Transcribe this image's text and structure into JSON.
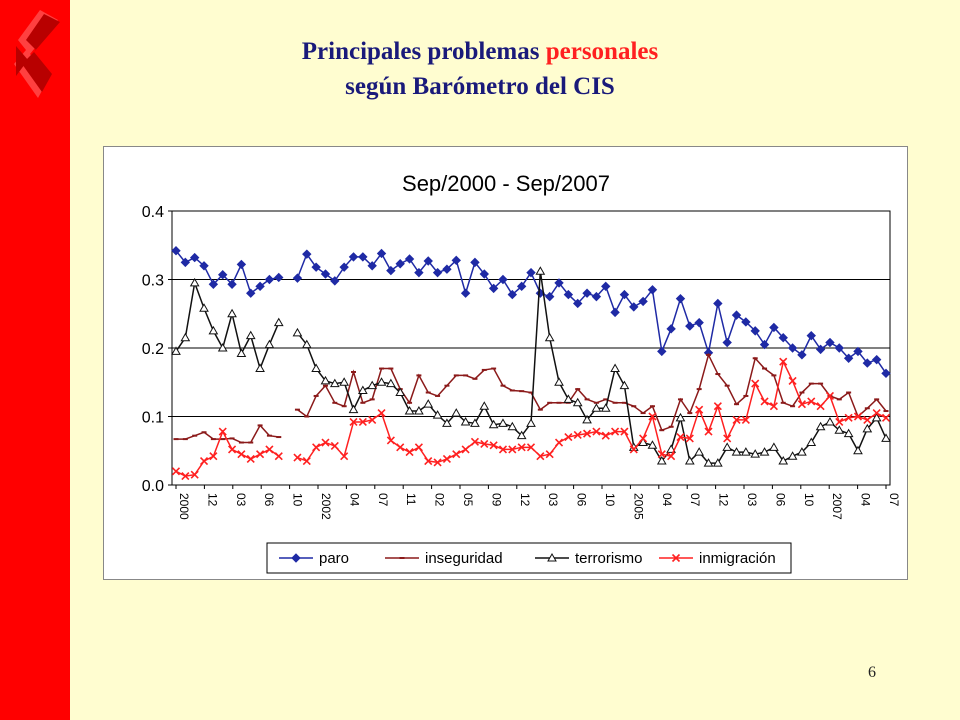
{
  "slide": {
    "title_line1_prefix": "Principales problemas ",
    "title_line1_accent": "personales",
    "title_line2": "según Barómetro del CIS",
    "page_number": "6",
    "colors": {
      "sidebar": "#ff0000",
      "background": "#fffdd0",
      "title": "#1a1a7a",
      "accent": "#ff2020"
    },
    "logo_icon": "cis-logo-icon"
  },
  "chart_data": {
    "type": "line",
    "title": "Sep/2000 - Sep/2007",
    "ylim": [
      0,
      0.4
    ],
    "y_ticks": [
      "0.0",
      "0.1",
      "0.2",
      "0.3",
      "0.4"
    ],
    "grid": true,
    "legend_position": "bottom",
    "x_tick_labels": [
      "2000",
      "12",
      "03",
      "06",
      "10",
      "2002",
      "04",
      "07",
      "11",
      "02",
      "05",
      "09",
      "12",
      "03",
      "06",
      "10",
      "2005",
      "04",
      "07",
      "12",
      "03",
      "06",
      "10",
      "2007",
      "04",
      "07"
    ],
    "series": [
      {
        "name": "paro",
        "color": "#1f2aa5",
        "marker": "diamond",
        "values": [
          0.342,
          0.325,
          0.332,
          0.32,
          0.293,
          0.307,
          0.293,
          0.322,
          0.28,
          0.29,
          0.3,
          0.303,
          null,
          0.302,
          0.337,
          0.318,
          0.308,
          0.298,
          0.318,
          0.333,
          0.333,
          0.32,
          0.338,
          0.313,
          0.323,
          0.33,
          0.31,
          0.327,
          0.31,
          0.315,
          0.328,
          0.28,
          0.325,
          0.308,
          0.287,
          0.3,
          0.278,
          0.29,
          0.31,
          0.28,
          0.275,
          0.295,
          0.278,
          0.265,
          0.28,
          0.275,
          0.29,
          0.252,
          0.278,
          0.26,
          0.268,
          0.285,
          0.195,
          0.228,
          0.272,
          0.232,
          0.237,
          0.193,
          0.265,
          0.208,
          0.248,
          0.238,
          0.225,
          0.205,
          0.23,
          0.215,
          0.2,
          0.19,
          0.218,
          0.198,
          0.208,
          0.2,
          0.185,
          0.195,
          0.178,
          0.183,
          0.163
        ]
      },
      {
        "name": "inseguridad",
        "color": "#8b1a1a",
        "marker": "dash",
        "values": [
          0.067,
          0.067,
          0.072,
          0.077,
          0.067,
          0.067,
          0.068,
          0.062,
          0.062,
          0.087,
          0.072,
          0.07,
          null,
          0.11,
          0.1,
          0.13,
          0.145,
          0.12,
          0.115,
          0.165,
          0.12,
          0.125,
          0.17,
          0.17,
          0.14,
          0.12,
          0.16,
          0.135,
          0.13,
          0.145,
          0.16,
          0.16,
          0.155,
          0.168,
          0.17,
          0.145,
          0.138,
          0.137,
          0.135,
          0.11,
          0.12,
          0.12,
          0.12,
          0.14,
          0.125,
          0.12,
          0.125,
          0.12,
          0.12,
          0.115,
          0.105,
          0.115,
          0.08,
          0.085,
          0.125,
          0.105,
          0.14,
          0.19,
          0.162,
          0.145,
          0.118,
          0.13,
          0.185,
          0.17,
          0.16,
          0.12,
          0.115,
          0.135,
          0.148,
          0.148,
          0.13,
          0.125,
          0.135,
          0.1,
          0.112,
          0.125,
          0.108
        ]
      },
      {
        "name": "terrorismo",
        "color": "#111111",
        "marker": "triangle",
        "values": [
          0.195,
          0.215,
          0.295,
          0.258,
          0.225,
          0.2,
          0.25,
          0.192,
          0.218,
          0.17,
          0.205,
          0.237,
          null,
          0.222,
          0.205,
          0.17,
          0.152,
          0.148,
          0.15,
          0.11,
          0.138,
          0.145,
          0.15,
          0.148,
          0.135,
          0.108,
          0.108,
          0.118,
          0.102,
          0.09,
          0.105,
          0.092,
          0.09,
          0.115,
          0.088,
          0.09,
          0.085,
          0.072,
          0.09,
          0.312,
          0.215,
          0.15,
          0.125,
          0.12,
          0.095,
          0.112,
          0.112,
          0.17,
          0.145,
          0.055,
          0.062,
          0.058,
          0.035,
          0.052,
          0.098,
          0.035,
          0.048,
          0.032,
          0.032,
          0.055,
          0.048,
          0.048,
          0.045,
          0.048,
          0.055,
          0.035,
          0.042,
          0.048,
          0.062,
          0.085,
          0.092,
          0.08,
          0.075,
          0.05,
          0.082,
          0.098,
          0.068
        ]
      },
      {
        "name": "inmigración",
        "color": "#ff2020",
        "marker": "cross",
        "values": [
          0.02,
          0.013,
          0.015,
          0.035,
          0.042,
          0.078,
          0.052,
          0.045,
          0.038,
          0.045,
          0.052,
          0.042,
          null,
          0.04,
          0.035,
          0.055,
          0.062,
          0.057,
          0.042,
          0.092,
          0.092,
          0.095,
          0.105,
          0.065,
          0.055,
          0.048,
          0.055,
          0.035,
          0.033,
          0.038,
          0.045,
          0.052,
          0.063,
          0.06,
          0.058,
          0.052,
          0.052,
          0.055,
          0.055,
          0.042,
          0.045,
          0.062,
          0.07,
          0.073,
          0.075,
          0.078,
          0.072,
          0.078,
          0.078,
          0.052,
          0.068,
          0.1,
          0.045,
          0.042,
          0.07,
          0.068,
          0.11,
          0.078,
          0.115,
          0.068,
          0.095,
          0.095,
          0.148,
          0.122,
          0.115,
          0.18,
          0.152,
          0.118,
          0.122,
          0.115,
          0.13,
          0.092,
          0.098,
          0.1,
          0.095,
          0.105,
          0.098
        ]
      }
    ]
  }
}
